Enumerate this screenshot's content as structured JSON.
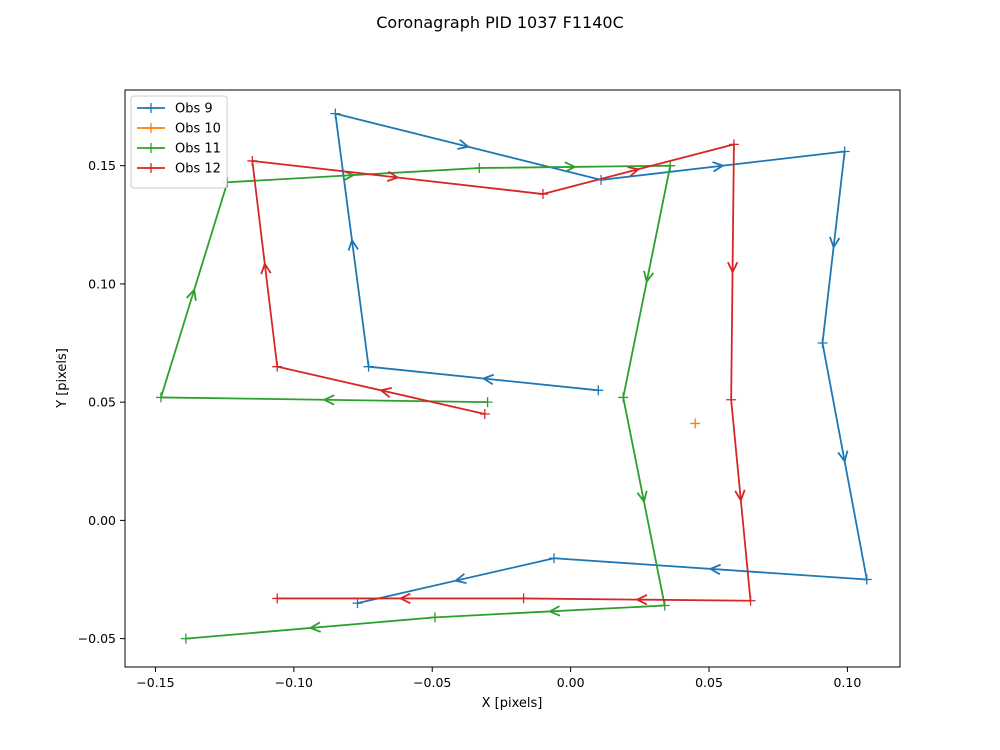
{
  "chart_data": {
    "type": "line",
    "title": "Coronagraph PID 1037 F1140C",
    "xlabel": "X [pixels]",
    "ylabel": "Y [pixels]",
    "xlim": [
      -0.161,
      0.119
    ],
    "ylim": [
      -0.062,
      0.182
    ],
    "xticks": [
      -0.15,
      -0.1,
      -0.05,
      0.0,
      0.05,
      0.1
    ],
    "yticks": [
      -0.05,
      0.0,
      0.05,
      0.1,
      0.15
    ],
    "xtick_labels": [
      "−0.15",
      "−0.10",
      "−0.05",
      "0.00",
      "0.05",
      "0.10"
    ],
    "ytick_labels": [
      "−0.05",
      "0.00",
      "0.05",
      "0.10",
      "0.15"
    ],
    "grid": false,
    "legend_position": "top-left",
    "series": [
      {
        "name": "Obs 9",
        "color": "#1f77b4",
        "points": [
          [
            0.01,
            0.055
          ],
          [
            -0.073,
            0.065
          ],
          [
            -0.085,
            0.172
          ],
          [
            0.011,
            0.144
          ],
          [
            0.099,
            0.156
          ],
          [
            0.091,
            0.075
          ],
          [
            0.107,
            -0.025
          ],
          [
            -0.006,
            -0.016
          ],
          [
            -0.077,
            -0.035
          ]
        ]
      },
      {
        "name": "Obs 10",
        "color": "#ff7f0e",
        "points": [
          [
            0.045,
            0.041
          ]
        ]
      },
      {
        "name": "Obs 11",
        "color": "#2ca02c",
        "points": [
          [
            -0.03,
            0.05
          ],
          [
            -0.148,
            0.052
          ],
          [
            -0.124,
            0.143
          ],
          [
            -0.033,
            0.149
          ],
          [
            0.036,
            0.15
          ],
          [
            0.019,
            0.052
          ],
          [
            0.034,
            -0.036
          ],
          [
            -0.049,
            -0.041
          ],
          [
            -0.139,
            -0.05
          ]
        ]
      },
      {
        "name": "Obs 12",
        "color": "#d62728",
        "points": [
          [
            -0.031,
            0.045
          ],
          [
            -0.106,
            0.065
          ],
          [
            -0.115,
            0.152
          ],
          [
            -0.01,
            0.138
          ],
          [
            0.059,
            0.159
          ],
          [
            0.058,
            0.051
          ],
          [
            0.065,
            -0.034
          ],
          [
            -0.017,
            -0.033
          ],
          [
            -0.106,
            -0.033
          ]
        ]
      }
    ]
  }
}
